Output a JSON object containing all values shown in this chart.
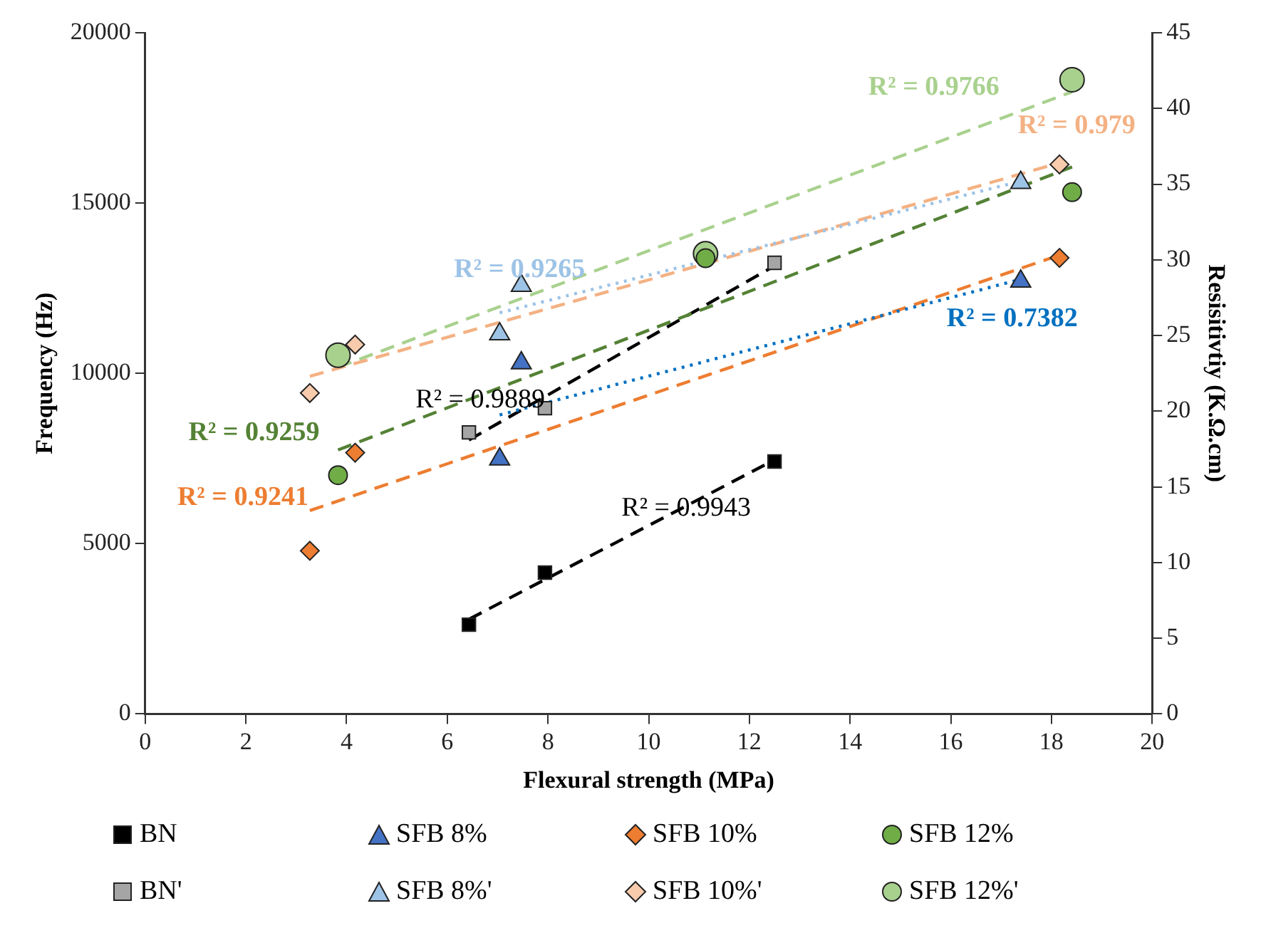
{
  "chart_data": {
    "type": "scatter",
    "xlabel": "Flexural strength (MPa)",
    "ylabel": "Frequency (Hz)",
    "y2label": "Resisitivtiy (K.Ω.cm)",
    "xlim": [
      0,
      20
    ],
    "xticks": [
      0,
      2,
      4,
      6,
      8,
      10,
      12,
      14,
      16,
      18,
      20
    ],
    "ylim": [
      0,
      20000
    ],
    "yticks": [
      0,
      5000,
      10000,
      15000,
      20000
    ],
    "y2lim": [
      0,
      45
    ],
    "y2ticks": [
      0,
      5,
      10,
      15,
      20,
      25,
      30,
      35,
      40,
      45
    ],
    "grid": false,
    "legend": "bottom",
    "series": [
      {
        "name": "BN",
        "marker": "square",
        "color": "#000000",
        "x": [
          6.43,
          7.94,
          12.5
        ],
        "values": [
          2620,
          4150,
          7410
        ]
      },
      {
        "name": "SFB 8%",
        "marker": "triangle",
        "color": "#4472c4",
        "x": [
          7.04,
          7.47,
          17.39
        ],
        "values": [
          7480,
          10300,
          12700
        ]
      },
      {
        "name": "SFB 10%",
        "marker": "diamond",
        "color": "#ed7d31",
        "x": [
          3.27,
          4.17,
          18.16
        ],
        "values": [
          4790,
          7670,
          13390
        ]
      },
      {
        "name": "SFB 12%",
        "marker": "circle",
        "color": "#70ad47",
        "x": [
          3.83,
          11.13,
          18.41
        ],
        "values": [
          7010,
          13380,
          15320
        ]
      },
      {
        "name": "BN'",
        "marker": "square",
        "color": "#a5a5a5",
        "axis": "y2",
        "x": [
          6.43,
          7.94,
          12.5
        ],
        "values": [
          18.6,
          20.2,
          29.8
        ]
      },
      {
        "name": "SFB 8%'",
        "marker": "triangle",
        "color": "#9dc3e6",
        "axis": "y2",
        "x": [
          7.04,
          7.47,
          17.39
        ],
        "values": [
          25.1,
          28.3,
          35.1
        ]
      },
      {
        "name": "SFB 10%'",
        "marker": "diamond",
        "color": "#f8cbad",
        "axis": "y2",
        "x": [
          3.27,
          4.17,
          18.16
        ],
        "values": [
          21.2,
          24.4,
          36.3
        ]
      },
      {
        "name": "SFB 12%'",
        "marker": "circle",
        "color": "#a9d18e",
        "axis": "y2",
        "x": [
          3.83,
          11.13,
          18.41
        ],
        "values": [
          23.7,
          30.4,
          41.9
        ]
      },
      {
        "name": "R² = 0.9943",
        "type": "line",
        "marker": "none",
        "line_style": "dashed",
        "color": "#000000",
        "x": [
          6.43,
          12.5
        ],
        "values": [
          2780,
          7460
        ]
      },
      {
        "name": "R² = 0.7382",
        "type": "line",
        "marker": "none",
        "line_style": "dotted",
        "color": "#0070c0",
        "x": [
          7.04,
          17.39
        ],
        "values": [
          8780,
          12760
        ]
      },
      {
        "name": "R² = 0.9241",
        "type": "line",
        "marker": "none",
        "line_style": "dashed",
        "color": "#ed7d31",
        "x": [
          3.27,
          18.16
        ],
        "values": [
          5970,
          13470
        ]
      },
      {
        "name": "R² = 0.9259",
        "type": "line",
        "marker": "none",
        "line_style": "dashed",
        "color": "#548235",
        "x": [
          3.83,
          18.41
        ],
        "values": [
          7750,
          16060
        ]
      },
      {
        "name": "R² = 0.9889",
        "type": "line",
        "marker": "none",
        "line_style": "dashed",
        "color": "#000000",
        "axis": "y2",
        "x": [
          6.43,
          12.5
        ],
        "values": [
          18.1,
          29.6
        ]
      },
      {
        "name": "R² = 0.9265",
        "type": "line",
        "marker": "none",
        "line_style": "dotted",
        "color": "#9dc3e6",
        "axis": "y2",
        "x": [
          7.04,
          17.39
        ],
        "values": [
          26.5,
          35.2
        ]
      },
      {
        "name": "R² = 0.979",
        "type": "line",
        "marker": "none",
        "line_style": "dashed",
        "color": "#f4b183",
        "axis": "y2",
        "x": [
          3.27,
          18.16
        ],
        "values": [
          22.3,
          36.4
        ]
      },
      {
        "name": "R² = 0.9766",
        "type": "line",
        "marker": "none",
        "line_style": "dashed",
        "color": "#a9d18e",
        "axis": "y2",
        "x": [
          3.83,
          18.41
        ],
        "values": [
          22.9,
          41.1
        ]
      }
    ]
  }
}
